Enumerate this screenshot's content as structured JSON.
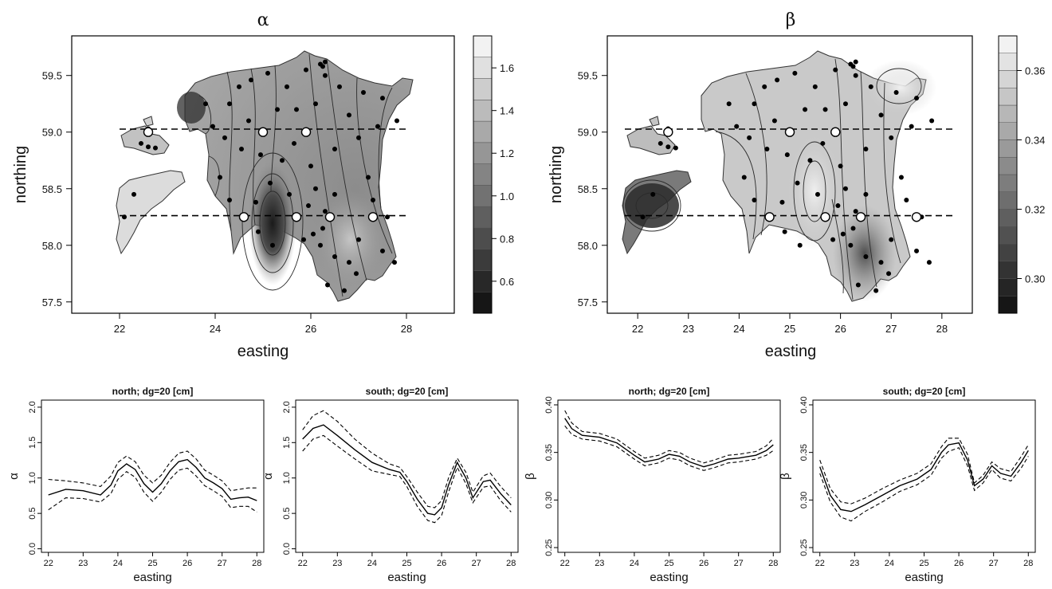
{
  "chart_data": [
    {
      "type": "heatmap",
      "title": "α",
      "xlabel": "easting",
      "ylabel": "northing",
      "xlim": [
        21,
        29
      ],
      "ylim": [
        57.4,
        59.85
      ],
      "xticks": [
        22,
        24,
        26,
        28
      ],
      "yticks": [
        57.5,
        58.0,
        58.5,
        59.0,
        59.5
      ],
      "colorbar": {
        "min": 0.45,
        "max": 1.75,
        "step": 0.1,
        "ticks": [
          0.6,
          0.8,
          1.0,
          1.2,
          1.4,
          1.6
        ],
        "dark": "#161616",
        "light": "#f2f2f2"
      },
      "transects": [
        {
          "name": "north",
          "y": 59.0,
          "x": [
            22.0,
            28.0
          ]
        },
        {
          "name": "south",
          "y": 58.25,
          "x": [
            22.0,
            28.0
          ]
        }
      ],
      "highlight_points": [
        [
          22.6,
          59.0
        ],
        [
          25.0,
          59.0
        ],
        [
          25.9,
          59.0
        ],
        [
          24.6,
          58.25
        ],
        [
          25.7,
          58.25
        ],
        [
          26.4,
          58.25
        ],
        [
          27.3,
          58.25
        ]
      ],
      "sample_points": [
        [
          22.6,
          59.03
        ],
        [
          22.45,
          58.9
        ],
        [
          22.6,
          58.87
        ],
        [
          22.75,
          58.86
        ],
        [
          23.8,
          59.25
        ],
        [
          23.95,
          59.05
        ],
        [
          24.3,
          59.25
        ],
        [
          24.5,
          59.4
        ],
        [
          24.75,
          59.46
        ],
        [
          25.1,
          59.52
        ],
        [
          25.5,
          59.4
        ],
        [
          25.9,
          59.55
        ],
        [
          26.3,
          59.5
        ],
        [
          26.6,
          59.4
        ],
        [
          27.1,
          59.35
        ],
        [
          27.5,
          59.3
        ],
        [
          24.2,
          58.95
        ],
        [
          24.55,
          58.85
        ],
        [
          24.95,
          58.8
        ],
        [
          25.4,
          58.75
        ],
        [
          25.65,
          58.9
        ],
        [
          26.0,
          58.7
        ],
        [
          26.5,
          58.85
        ],
        [
          27.0,
          58.95
        ],
        [
          27.4,
          59.05
        ],
        [
          27.8,
          59.1
        ],
        [
          24.3,
          58.4
        ],
        [
          24.85,
          58.38
        ],
        [
          25.15,
          58.55
        ],
        [
          25.55,
          58.45
        ],
        [
          26.1,
          58.5
        ],
        [
          26.5,
          58.45
        ],
        [
          27.2,
          58.6
        ],
        [
          27.3,
          58.4
        ],
        [
          27.6,
          58.25
        ],
        [
          24.9,
          58.12
        ],
        [
          25.2,
          58.0
        ],
        [
          25.85,
          58.05
        ],
        [
          26.05,
          58.1
        ],
        [
          26.25,
          58.15
        ],
        [
          26.5,
          57.9
        ],
        [
          26.8,
          57.85
        ],
        [
          27.0,
          58.05
        ],
        [
          27.5,
          57.95
        ],
        [
          27.75,
          57.85
        ],
        [
          26.35,
          57.65
        ],
        [
          26.7,
          57.6
        ],
        [
          26.95,
          57.75
        ],
        [
          22.1,
          58.25
        ],
        [
          22.3,
          58.45
        ],
        [
          24.1,
          58.6
        ],
        [
          25.7,
          59.2
        ],
        [
          26.1,
          59.25
        ],
        [
          26.8,
          59.15
        ],
        [
          24.7,
          59.1
        ],
        [
          25.3,
          59.2
        ],
        [
          26.3,
          58.3
        ],
        [
          26.2,
          58.0
        ],
        [
          25.95,
          58.35
        ],
        [
          26.2,
          59.6
        ],
        [
          26.25,
          59.58
        ],
        [
          26.3,
          59.62
        ]
      ]
    },
    {
      "type": "heatmap",
      "title": "β",
      "xlabel": "easting",
      "ylabel": "northing",
      "xlim": [
        21.4,
        28.6
      ],
      "ylim": [
        57.4,
        59.85
      ],
      "xticks": [
        22,
        23,
        24,
        25,
        26,
        27,
        28
      ],
      "yticks": [
        57.5,
        58.0,
        58.5,
        59.0,
        59.5
      ],
      "colorbar": {
        "min": 0.29,
        "max": 0.37,
        "step": 0.005,
        "ticks": [
          0.3,
          0.32,
          0.34,
          0.36
        ],
        "dark": "#161616",
        "light": "#f2f2f2"
      },
      "transects": [
        {
          "name": "north",
          "y": 59.0,
          "x": [
            22.0,
            28.0
          ]
        },
        {
          "name": "south",
          "y": 58.25,
          "x": [
            22.0,
            28.0
          ]
        }
      ],
      "highlight_points": [
        [
          22.6,
          59.0
        ],
        [
          25.0,
          59.0
        ],
        [
          25.9,
          59.0
        ],
        [
          24.6,
          58.25
        ],
        [
          25.7,
          58.25
        ],
        [
          26.4,
          58.25
        ],
        [
          27.5,
          58.25
        ]
      ],
      "sample_points": [
        [
          22.6,
          59.03
        ],
        [
          22.45,
          58.9
        ],
        [
          22.6,
          58.87
        ],
        [
          22.75,
          58.86
        ],
        [
          23.8,
          59.25
        ],
        [
          23.95,
          59.05
        ],
        [
          24.3,
          59.25
        ],
        [
          24.5,
          59.4
        ],
        [
          24.75,
          59.46
        ],
        [
          25.1,
          59.52
        ],
        [
          25.5,
          59.4
        ],
        [
          25.9,
          59.55
        ],
        [
          26.3,
          59.5
        ],
        [
          26.6,
          59.4
        ],
        [
          27.1,
          59.35
        ],
        [
          27.5,
          59.3
        ],
        [
          24.2,
          58.95
        ],
        [
          24.55,
          58.85
        ],
        [
          24.95,
          58.8
        ],
        [
          25.4,
          58.75
        ],
        [
          25.65,
          58.9
        ],
        [
          26.0,
          58.7
        ],
        [
          26.5,
          58.85
        ],
        [
          27.0,
          58.95
        ],
        [
          27.4,
          59.05
        ],
        [
          27.8,
          59.1
        ],
        [
          24.3,
          58.4
        ],
        [
          24.85,
          58.38
        ],
        [
          25.15,
          58.55
        ],
        [
          25.55,
          58.45
        ],
        [
          26.1,
          58.5
        ],
        [
          26.5,
          58.45
        ],
        [
          27.2,
          58.6
        ],
        [
          27.3,
          58.4
        ],
        [
          27.6,
          58.25
        ],
        [
          24.9,
          58.12
        ],
        [
          25.2,
          58.0
        ],
        [
          25.85,
          58.05
        ],
        [
          26.05,
          58.1
        ],
        [
          26.25,
          58.15
        ],
        [
          26.5,
          57.9
        ],
        [
          26.8,
          57.85
        ],
        [
          27.0,
          58.05
        ],
        [
          27.5,
          57.95
        ],
        [
          27.75,
          57.85
        ],
        [
          26.35,
          57.65
        ],
        [
          26.7,
          57.6
        ],
        [
          26.95,
          57.75
        ],
        [
          22.1,
          58.25
        ],
        [
          22.3,
          58.45
        ],
        [
          24.1,
          58.6
        ],
        [
          25.7,
          59.2
        ],
        [
          26.1,
          59.25
        ],
        [
          26.8,
          59.15
        ],
        [
          24.7,
          59.1
        ],
        [
          25.3,
          59.2
        ],
        [
          26.3,
          58.3
        ],
        [
          26.2,
          58.0
        ],
        [
          25.95,
          58.35
        ],
        [
          26.2,
          59.6
        ],
        [
          26.25,
          59.58
        ],
        [
          26.3,
          59.62
        ]
      ]
    },
    {
      "type": "line",
      "title": "north; dg=20 [cm]",
      "xlabel": "easting",
      "ylabel": "α",
      "xlim": [
        21.8,
        28.2
      ],
      "ylim": [
        -0.05,
        2.1
      ],
      "xticks": [
        22,
        23,
        24,
        25,
        26,
        27,
        28
      ],
      "yticks": [
        0.0,
        0.5,
        1.0,
        1.5,
        2.0
      ],
      "x": [
        22.0,
        22.5,
        23.0,
        23.5,
        23.8,
        24.0,
        24.25,
        24.5,
        24.75,
        25.0,
        25.25,
        25.5,
        25.75,
        26.0,
        26.25,
        26.5,
        26.75,
        27.0,
        27.25,
        27.5,
        27.75,
        28.0
      ],
      "series": [
        {
          "values": [
            0.76,
            0.84,
            0.82,
            0.76,
            0.9,
            1.1,
            1.2,
            1.12,
            0.92,
            0.8,
            0.92,
            1.1,
            1.23,
            1.26,
            1.15,
            1.0,
            0.93,
            0.85,
            0.7,
            0.72,
            0.73,
            0.68
          ],
          "style": "solid"
        },
        {
          "values": [
            0.98,
            0.96,
            0.93,
            0.88,
            1.03,
            1.22,
            1.31,
            1.23,
            1.04,
            0.93,
            1.04,
            1.22,
            1.35,
            1.38,
            1.27,
            1.11,
            1.04,
            0.96,
            0.82,
            0.84,
            0.86,
            0.86
          ],
          "style": "dashed"
        },
        {
          "values": [
            0.55,
            0.72,
            0.71,
            0.66,
            0.78,
            0.98,
            1.09,
            1.01,
            0.8,
            0.67,
            0.8,
            0.98,
            1.11,
            1.14,
            1.03,
            0.89,
            0.82,
            0.74,
            0.58,
            0.6,
            0.6,
            0.52
          ],
          "style": "dashed"
        }
      ]
    },
    {
      "type": "line",
      "title": "south; dg=20 [cm]",
      "xlabel": "easting",
      "ylabel": "α",
      "xlim": [
        21.8,
        28.2
      ],
      "ylim": [
        -0.05,
        2.1
      ],
      "xticks": [
        22,
        23,
        24,
        25,
        26,
        27,
        28
      ],
      "yticks": [
        0.0,
        0.5,
        1.0,
        1.5,
        2.0
      ],
      "x": [
        22.0,
        22.3,
        22.6,
        23.0,
        23.5,
        24.0,
        24.5,
        24.8,
        25.0,
        25.3,
        25.6,
        25.8,
        26.0,
        26.2,
        26.45,
        26.7,
        26.9,
        27.2,
        27.4,
        27.7,
        28.0
      ],
      "series": [
        {
          "values": [
            1.55,
            1.7,
            1.75,
            1.6,
            1.4,
            1.22,
            1.12,
            1.08,
            0.95,
            0.7,
            0.5,
            0.48,
            0.58,
            0.9,
            1.22,
            1.0,
            0.72,
            0.95,
            0.97,
            0.78,
            0.62
          ],
          "style": "solid"
        },
        {
          "values": [
            1.68,
            1.88,
            1.95,
            1.8,
            1.55,
            1.35,
            1.2,
            1.15,
            1.02,
            0.8,
            0.6,
            0.58,
            0.68,
            1.0,
            1.28,
            1.08,
            0.8,
            1.03,
            1.07,
            0.88,
            0.72
          ],
          "style": "dashed"
        },
        {
          "values": [
            1.38,
            1.55,
            1.6,
            1.45,
            1.27,
            1.1,
            1.05,
            1.02,
            0.88,
            0.6,
            0.4,
            0.37,
            0.47,
            0.8,
            1.15,
            0.92,
            0.65,
            0.87,
            0.89,
            0.68,
            0.52
          ],
          "style": "dashed"
        }
      ]
    },
    {
      "type": "line",
      "title": "north; dg=20 [cm]",
      "xlabel": "easting",
      "ylabel": "β",
      "xlim": [
        21.8,
        28.2
      ],
      "ylim": [
        0.245,
        0.405
      ],
      "xticks": [
        22,
        23,
        24,
        25,
        26,
        27,
        28
      ],
      "yticks": [
        0.25,
        0.3,
        0.35,
        0.4
      ],
      "x": [
        22.0,
        22.2,
        22.5,
        23.0,
        23.5,
        24.0,
        24.3,
        24.7,
        25.0,
        25.3,
        25.6,
        26.0,
        26.3,
        26.7,
        27.0,
        27.5,
        27.8,
        28.0
      ],
      "series": [
        {
          "values": [
            0.386,
            0.375,
            0.368,
            0.366,
            0.36,
            0.347,
            0.34,
            0.343,
            0.348,
            0.346,
            0.34,
            0.335,
            0.338,
            0.343,
            0.344,
            0.347,
            0.352,
            0.358
          ],
          "style": "solid"
        },
        {
          "values": [
            0.394,
            0.381,
            0.372,
            0.37,
            0.364,
            0.351,
            0.344,
            0.347,
            0.352,
            0.35,
            0.344,
            0.339,
            0.342,
            0.347,
            0.348,
            0.351,
            0.357,
            0.365
          ],
          "style": "dashed"
        },
        {
          "values": [
            0.378,
            0.369,
            0.364,
            0.362,
            0.356,
            0.343,
            0.336,
            0.339,
            0.344,
            0.342,
            0.336,
            0.331,
            0.334,
            0.339,
            0.34,
            0.343,
            0.347,
            0.352
          ],
          "style": "dashed"
        }
      ]
    },
    {
      "type": "line",
      "title": "south; dg=20 [cm]",
      "xlabel": "easting",
      "ylabel": "β",
      "xlim": [
        21.8,
        28.2
      ],
      "ylim": [
        0.245,
        0.405
      ],
      "xticks": [
        22,
        23,
        24,
        25,
        26,
        27,
        28
      ],
      "yticks": [
        0.25,
        0.3,
        0.35,
        0.4
      ],
      "x": [
        22.0,
        22.3,
        22.6,
        22.9,
        23.3,
        23.8,
        24.3,
        24.8,
        25.2,
        25.5,
        25.7,
        26.0,
        26.25,
        26.45,
        26.7,
        26.95,
        27.2,
        27.5,
        27.8,
        28.0
      ],
      "series": [
        {
          "values": [
            0.335,
            0.305,
            0.29,
            0.288,
            0.295,
            0.305,
            0.315,
            0.322,
            0.332,
            0.35,
            0.358,
            0.36,
            0.342,
            0.315,
            0.322,
            0.336,
            0.328,
            0.325,
            0.34,
            0.352
          ],
          "style": "solid"
        },
        {
          "values": [
            0.342,
            0.312,
            0.298,
            0.296,
            0.302,
            0.312,
            0.321,
            0.328,
            0.338,
            0.356,
            0.365,
            0.365,
            0.348,
            0.318,
            0.326,
            0.34,
            0.333,
            0.33,
            0.346,
            0.358
          ],
          "style": "dashed"
        },
        {
          "values": [
            0.328,
            0.298,
            0.282,
            0.278,
            0.288,
            0.298,
            0.309,
            0.316,
            0.326,
            0.344,
            0.351,
            0.355,
            0.336,
            0.31,
            0.318,
            0.332,
            0.323,
            0.32,
            0.334,
            0.346
          ],
          "style": "dashed"
        }
      ]
    }
  ]
}
